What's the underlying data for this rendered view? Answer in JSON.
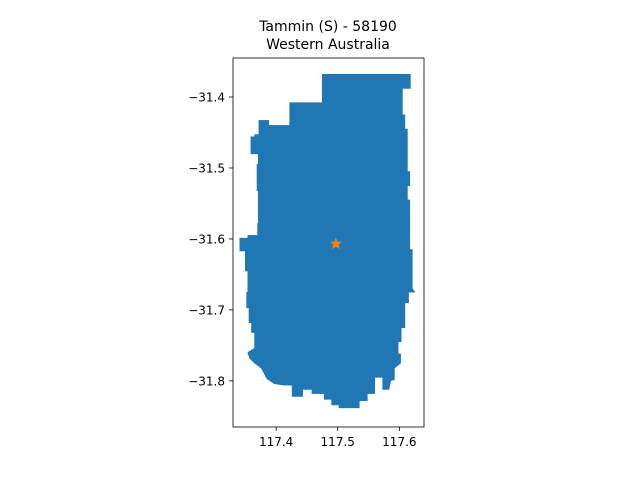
{
  "map": {
    "title_line1": "Tammin (S) - 58190",
    "title_line2": "Western Australia",
    "region_color": "#1f77b4",
    "marker_color": "#ff7f0e",
    "marker_icon": "star-icon",
    "x_ticks": [
      "117.4",
      "117.5",
      "117.6"
    ],
    "y_ticks": [
      "−31.4",
      "−31.5",
      "−31.6",
      "−31.7",
      "−31.8"
    ]
  },
  "chart_data": {
    "type": "map",
    "title": "Tammin (S) - 58190\nWestern Australia",
    "xlim": [
      117.33,
      117.64
    ],
    "ylim": [
      -31.865,
      -31.345
    ],
    "x_tick_values": [
      117.4,
      117.5,
      117.6
    ],
    "y_tick_values": [
      -31.4,
      -31.5,
      -31.6,
      -31.7,
      -31.8
    ],
    "centroid": {
      "lon": 117.497,
      "lat": -31.607
    },
    "boundary": [
      [
        117.475,
        -31.368
      ],
      [
        117.618,
        -31.368
      ],
      [
        117.618,
        -31.388
      ],
      [
        117.605,
        -31.388
      ],
      [
        117.605,
        -31.425
      ],
      [
        117.609,
        -31.425
      ],
      [
        117.609,
        -31.445
      ],
      [
        117.613,
        -31.445
      ],
      [
        117.613,
        -31.505
      ],
      [
        117.617,
        -31.505
      ],
      [
        117.617,
        -31.525
      ],
      [
        117.613,
        -31.525
      ],
      [
        117.613,
        -31.545
      ],
      [
        117.617,
        -31.545
      ],
      [
        117.617,
        -31.615
      ],
      [
        117.621,
        -31.615
      ],
      [
        117.621,
        -31.67
      ],
      [
        117.625,
        -31.675
      ],
      [
        117.615,
        -31.675
      ],
      [
        117.615,
        -31.69
      ],
      [
        117.609,
        -31.69
      ],
      [
        117.609,
        -31.725
      ],
      [
        117.603,
        -31.725
      ],
      [
        117.603,
        -31.745
      ],
      [
        117.598,
        -31.745
      ],
      [
        117.598,
        -31.762
      ],
      [
        117.602,
        -31.762
      ],
      [
        117.602,
        -31.775
      ],
      [
        117.592,
        -31.782
      ],
      [
        117.592,
        -31.798
      ],
      [
        117.586,
        -31.8
      ],
      [
        117.583,
        -31.812
      ],
      [
        117.573,
        -31.812
      ],
      [
        117.573,
        -31.795
      ],
      [
        117.56,
        -31.795
      ],
      [
        117.56,
        -31.818
      ],
      [
        117.548,
        -31.818
      ],
      [
        117.548,
        -31.828
      ],
      [
        117.535,
        -31.828
      ],
      [
        117.535,
        -31.838
      ],
      [
        117.502,
        -31.838
      ],
      [
        117.502,
        -31.834
      ],
      [
        117.49,
        -31.834
      ],
      [
        117.49,
        -31.826
      ],
      [
        117.478,
        -31.826
      ],
      [
        117.478,
        -31.818
      ],
      [
        117.458,
        -31.818
      ],
      [
        117.458,
        -31.812
      ],
      [
        117.443,
        -31.812
      ],
      [
        117.443,
        -31.822
      ],
      [
        117.426,
        -31.822
      ],
      [
        117.426,
        -31.806
      ],
      [
        117.412,
        -31.806
      ],
      [
        117.397,
        -31.804
      ],
      [
        117.385,
        -31.797
      ],
      [
        117.376,
        -31.782
      ],
      [
        117.365,
        -31.775
      ],
      [
        117.357,
        -31.768
      ],
      [
        117.354,
        -31.76
      ],
      [
        117.365,
        -31.754
      ],
      [
        117.365,
        -31.732
      ],
      [
        117.36,
        -31.732
      ],
      [
        117.36,
        -31.718
      ],
      [
        117.356,
        -31.718
      ],
      [
        117.356,
        -31.697
      ],
      [
        117.352,
        -31.697
      ],
      [
        117.352,
        -31.675
      ],
      [
        117.354,
        -31.675
      ],
      [
        117.354,
        -31.645
      ],
      [
        117.35,
        -31.645
      ],
      [
        117.35,
        -31.617
      ],
      [
        117.341,
        -31.617
      ],
      [
        117.341,
        -31.599
      ],
      [
        117.354,
        -31.599
      ],
      [
        117.354,
        -31.595
      ],
      [
        117.37,
        -31.595
      ],
      [
        117.37,
        -31.578
      ],
      [
        117.371,
        -31.578
      ],
      [
        117.371,
        -31.532
      ],
      [
        117.369,
        -31.532
      ],
      [
        117.369,
        -31.495
      ],
      [
        117.371,
        -31.495
      ],
      [
        117.371,
        -31.48
      ],
      [
        117.359,
        -31.48
      ],
      [
        117.359,
        -31.456
      ],
      [
        117.365,
        -31.456
      ],
      [
        117.365,
        -31.453
      ],
      [
        117.372,
        -31.453
      ],
      [
        117.372,
        -31.433
      ],
      [
        117.388,
        -31.433
      ],
      [
        117.388,
        -31.44
      ],
      [
        117.422,
        -31.44
      ],
      [
        117.422,
        -31.408
      ],
      [
        117.475,
        -31.408
      ]
    ]
  }
}
